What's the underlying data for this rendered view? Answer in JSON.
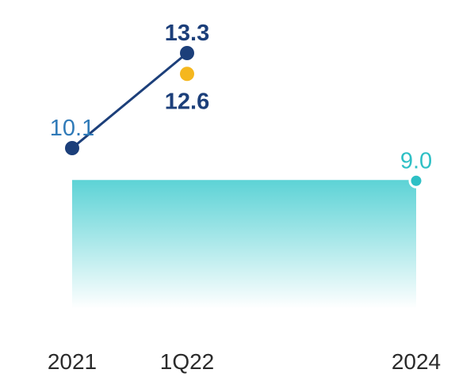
{
  "chart_data": {
    "type": "line",
    "categories": [
      "2021",
      "1Q22",
      "2024"
    ],
    "series": [
      {
        "values": [
          10.1,
          13.3,
          null
        ],
        "labels": [
          "10.1",
          "13.3",
          ""
        ],
        "color": "#1c3f7a"
      },
      {
        "values": [
          null,
          12.6,
          null
        ],
        "labels": [
          "",
          "12.6",
          ""
        ],
        "color": "#f5b71e"
      },
      {
        "values": [
          null,
          null,
          9.0
        ],
        "labels": [
          "",
          "",
          "9.0"
        ],
        "color": "#2ec0c5"
      }
    ],
    "reference_area": {
      "value": 9.0,
      "color": "#5ed3d6"
    },
    "label_colors": [
      "#2f7ab8",
      "#1c3f7a",
      "#2ec0c5"
    ],
    "ylim": [
      4.5,
      14.5
    ],
    "grid": false,
    "legend": "none"
  }
}
